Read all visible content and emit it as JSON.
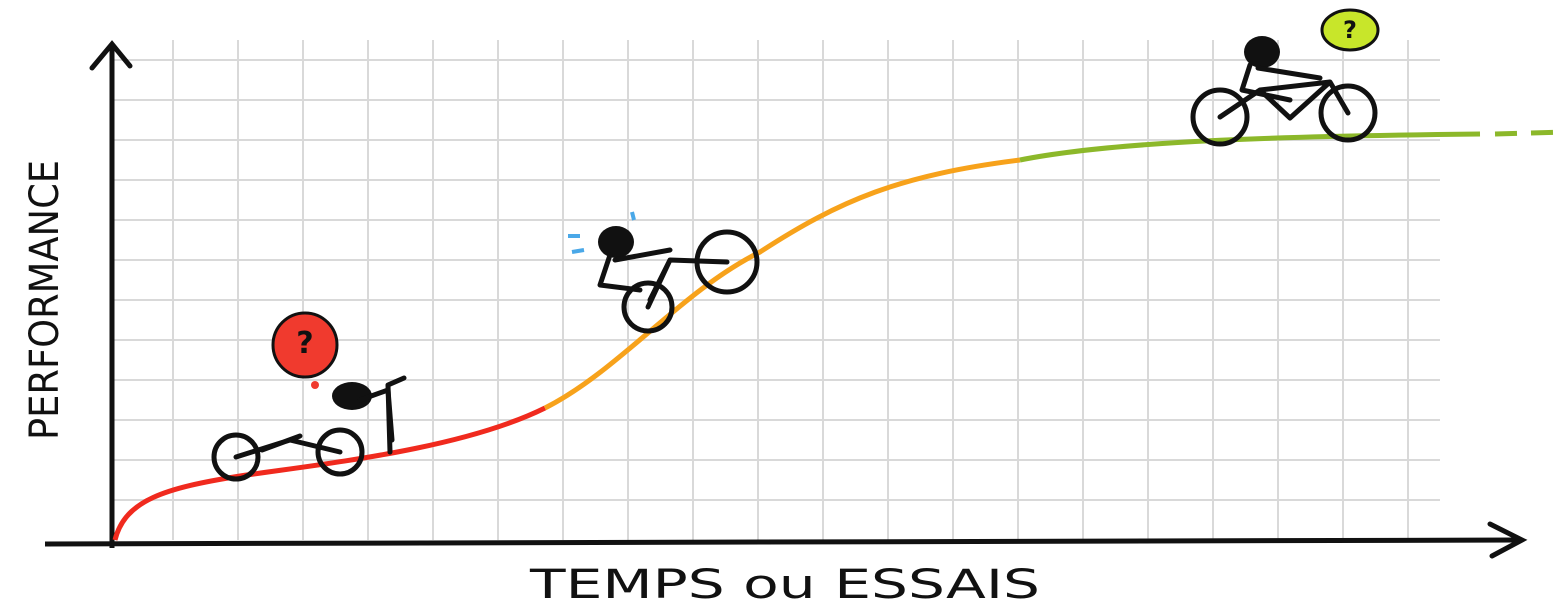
{
  "axes": {
    "y_label": "PERFORMANCE",
    "x_label": "TEMPS ou ESSAIS"
  },
  "bubbles": {
    "red": "?",
    "green": "?"
  }
}
